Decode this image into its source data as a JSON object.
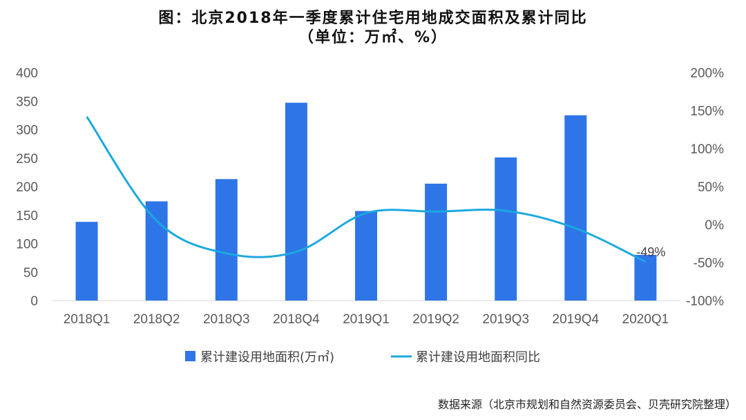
{
  "title_line1": "图：北京2018年一季度累计住宅用地成交面积及累计同比",
  "title_line2": "（单位：万㎡、%）",
  "source": "数据来源（北京市规划和自然资源委员会、贝壳研究院整理）",
  "colors": {
    "bar": "#2E75E8",
    "line": "#1BA8E0"
  },
  "chart_data": {
    "type": "bar",
    "categories": [
      "2018Q1",
      "2018Q2",
      "2018Q3",
      "2018Q4",
      "2019Q1",
      "2019Q2",
      "2019Q3",
      "2019Q4",
      "2020Q1"
    ],
    "series": [
      {
        "name": "累计建设用地面积(万㎡)",
        "type": "bar",
        "axis": "left",
        "values": [
          138,
          174,
          213,
          347,
          157,
          205,
          251,
          325,
          80
        ]
      },
      {
        "name": "累计建设用地面积同比",
        "type": "line",
        "axis": "right",
        "unit": "%",
        "values": [
          142,
          5,
          -38,
          -36,
          15,
          17,
          18,
          -5,
          -49
        ]
      }
    ],
    "left_axis": {
      "min": 0,
      "max": 400,
      "step": 50,
      "ticks": [
        "0",
        "50",
        "100",
        "150",
        "200",
        "250",
        "300",
        "350",
        "400"
      ]
    },
    "right_axis": {
      "min": -100,
      "max": 200,
      "step": 50,
      "ticks": [
        "-100%",
        "-50%",
        "0%",
        "50%",
        "100%",
        "150%",
        "200%"
      ]
    },
    "data_labels": [
      {
        "series": 1,
        "index": 8,
        "text": "-49%"
      }
    ],
    "legend_position": "bottom",
    "grid": false
  }
}
